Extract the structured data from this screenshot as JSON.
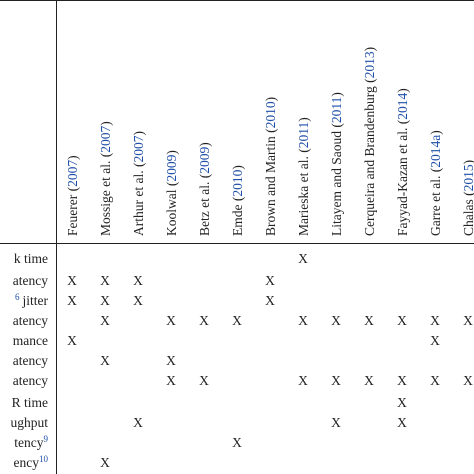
{
  "table": {
    "columns": [
      {
        "prefix": "Feuerer (",
        "year": "2007",
        "suffix": ")"
      },
      {
        "prefix": "Mossige et al. (",
        "year": "2007",
        "suffix": ")"
      },
      {
        "prefix": "Arthur et al. (",
        "year": "2007",
        "suffix": ")"
      },
      {
        "prefix": "Koolwal (",
        "year": "2009",
        "suffix": ")"
      },
      {
        "prefix": "Betz et al. (",
        "year": "2009",
        "suffix": ")"
      },
      {
        "prefix": "Emde (",
        "year": "2010",
        "suffix": ")"
      },
      {
        "prefix": "Brown and Martin (",
        "year": "2010",
        "suffix": ")"
      },
      {
        "prefix": "Marieska et al. (",
        "year": "2011",
        "suffix": ")"
      },
      {
        "prefix": "Litayem and Saoud (",
        "year": "2011",
        "suffix": ")"
      },
      {
        "prefix": "Cerqueira and Brandenburg (",
        "year": "2013",
        "suffix": ")"
      },
      {
        "prefix": "Fayyad-Kazan et al. (",
        "year": "2014",
        "suffix": ")"
      },
      {
        "prefix": "Garre et al. (",
        "year": "2014a",
        "suffix": ")"
      },
      {
        "prefix": "Chalas (",
        "year": "2015",
        "suffix": ")"
      }
    ],
    "rows": [
      {
        "label": "k time",
        "cells": [
          null,
          null,
          null,
          null,
          null,
          null,
          null,
          "X",
          null,
          null,
          null,
          null,
          null
        ]
      },
      {
        "label": "atency",
        "cells": [
          "X",
          "X",
          "X",
          null,
          null,
          null,
          "X",
          null,
          null,
          null,
          null,
          null,
          null
        ]
      },
      {
        "label": "jitter",
        "sup_before": "6",
        "cells": [
          "X",
          "X",
          "X",
          null,
          null,
          null,
          "X",
          null,
          null,
          null,
          null,
          null,
          null
        ]
      },
      {
        "label": "atency",
        "cells": [
          null,
          "X",
          null,
          "X",
          "X",
          "X",
          null,
          "X",
          "X",
          "X",
          "X",
          "X",
          "X"
        ]
      },
      {
        "label": "mance",
        "cells": [
          "X",
          null,
          null,
          null,
          null,
          null,
          null,
          null,
          null,
          null,
          null,
          "X",
          null
        ]
      },
      {
        "label": "atency",
        "cells": [
          null,
          "X",
          null,
          "X",
          null,
          null,
          null,
          null,
          null,
          null,
          null,
          null,
          null
        ]
      },
      {
        "label": "atency",
        "cells": [
          null,
          null,
          null,
          "X",
          "X",
          null,
          null,
          "X",
          "X",
          "X",
          "X",
          "X",
          "X"
        ]
      },
      {
        "label": "R time",
        "cells": [
          null,
          null,
          null,
          null,
          null,
          null,
          null,
          null,
          null,
          null,
          "X",
          null,
          null
        ]
      },
      {
        "label": "ughput",
        "cells": [
          null,
          null,
          "X",
          null,
          null,
          null,
          null,
          null,
          "X",
          null,
          "X",
          null,
          null
        ]
      },
      {
        "label": "tency",
        "sup_after": "9",
        "cells": [
          null,
          null,
          null,
          null,
          null,
          "X",
          null,
          null,
          null,
          null,
          null,
          null,
          null
        ]
      },
      {
        "label": "ency",
        "sup_after": "10",
        "cells": [
          null,
          "X",
          null,
          null,
          null,
          null,
          null,
          null,
          null,
          null,
          null,
          null,
          null
        ]
      }
    ]
  }
}
